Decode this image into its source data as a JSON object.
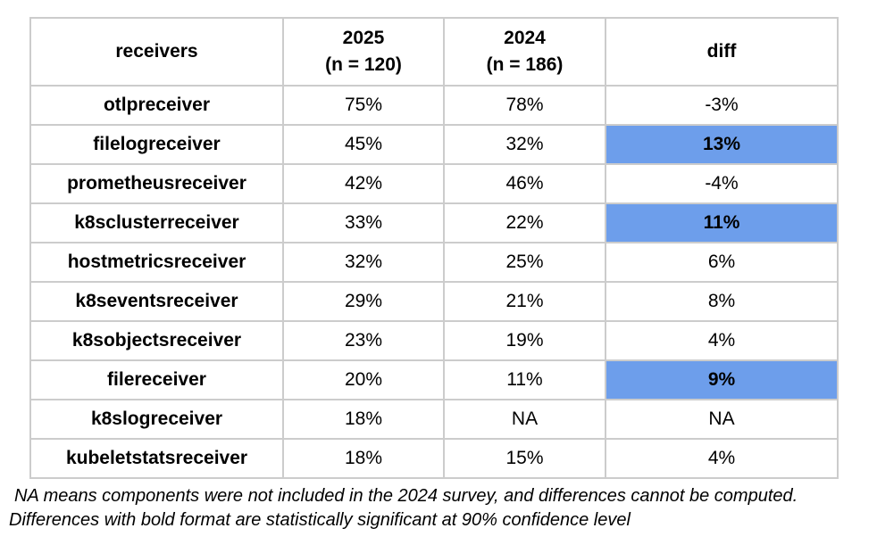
{
  "chart_data": {
    "type": "table",
    "header": {
      "receivers": "receivers",
      "y2025_line1": "2025",
      "y2025_line2": "(n = 120)",
      "y2024_line1": "2024",
      "y2024_line2": "(n = 186)",
      "diff": "diff"
    },
    "sample_sizes": {
      "2025": 120,
      "2024": 186
    },
    "rows": [
      {
        "receiver": "otlpreceiver",
        "pct_2025": "75%",
        "pct_2024": "78%",
        "diff": "-3%",
        "significant": false
      },
      {
        "receiver": "filelogreceiver",
        "pct_2025": "45%",
        "pct_2024": "32%",
        "diff": "13%",
        "significant": true
      },
      {
        "receiver": "prometheusreceiver",
        "pct_2025": "42%",
        "pct_2024": "46%",
        "diff": "-4%",
        "significant": false
      },
      {
        "receiver": "k8sclusterreceiver",
        "pct_2025": "33%",
        "pct_2024": "22%",
        "diff": "11%",
        "significant": true
      },
      {
        "receiver": "hostmetricsreceiver",
        "pct_2025": "32%",
        "pct_2024": "25%",
        "diff": "6%",
        "significant": false
      },
      {
        "receiver": "k8seventsreceiver",
        "pct_2025": "29%",
        "pct_2024": "21%",
        "diff": "8%",
        "significant": false
      },
      {
        "receiver": "k8sobjectsreceiver",
        "pct_2025": "23%",
        "pct_2024": "19%",
        "diff": "4%",
        "significant": false
      },
      {
        "receiver": "filereceiver",
        "pct_2025": "20%",
        "pct_2024": "11%",
        "diff": "9%",
        "significant": true
      },
      {
        "receiver": "k8slogreceiver",
        "pct_2025": "18%",
        "pct_2024": "NA",
        "diff": "NA",
        "significant": false
      },
      {
        "receiver": "kubeletstatsreceiver",
        "pct_2025": "18%",
        "pct_2024": "15%",
        "diff": "4%",
        "significant": false
      }
    ]
  },
  "notes": {
    "line1": "NA means components were not included in the 2024 survey, and differences cannot be computed.",
    "line2": "Differences with bold format are statistically significant at 90% confidence level"
  },
  "colors": {
    "significant_highlight": "#6d9eeb",
    "border": "#cccccc",
    "text": "#000000",
    "background": "#ffffff"
  }
}
